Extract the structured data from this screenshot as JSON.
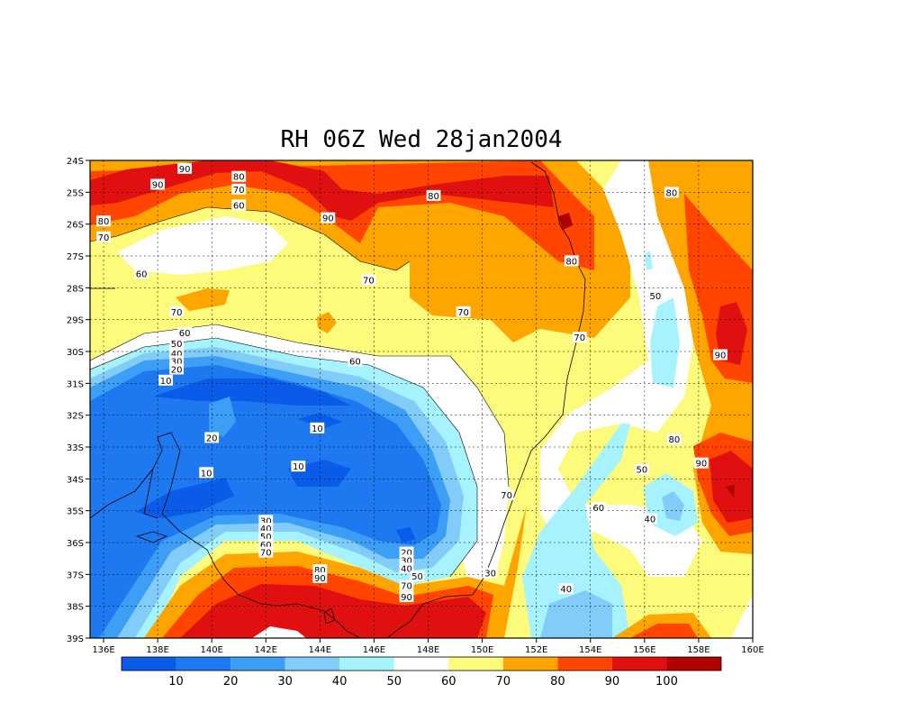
{
  "title": "RH 06Z Wed 28jan2004",
  "chart_data": {
    "type": "heatmap",
    "variable": "RH",
    "title": "RH 06Z Wed 28jan2004",
    "xlim": [
      135.5,
      160
    ],
    "ylim": [
      -39,
      -24
    ],
    "x_ticks": [
      {
        "value": 136,
        "label": "136E"
      },
      {
        "value": 138,
        "label": "138E"
      },
      {
        "value": 140,
        "label": "140E"
      },
      {
        "value": 142,
        "label": "142E"
      },
      {
        "value": 144,
        "label": "144E"
      },
      {
        "value": 146,
        "label": "146E"
      },
      {
        "value": 148,
        "label": "148E"
      },
      {
        "value": 150,
        "label": "150E"
      },
      {
        "value": 152,
        "label": "152E"
      },
      {
        "value": 154,
        "label": "154E"
      },
      {
        "value": 156,
        "label": "156E"
      },
      {
        "value": 158,
        "label": "158E"
      },
      {
        "value": 160,
        "label": "160E"
      }
    ],
    "y_ticks": [
      {
        "value": -24,
        "label": "24S"
      },
      {
        "value": -25,
        "label": "25S"
      },
      {
        "value": -26,
        "label": "26S"
      },
      {
        "value": -27,
        "label": "27S"
      },
      {
        "value": -28,
        "label": "28S"
      },
      {
        "value": -29,
        "label": "29S"
      },
      {
        "value": -30,
        "label": "30S"
      },
      {
        "value": -31,
        "label": "31S"
      },
      {
        "value": -32,
        "label": "32S"
      },
      {
        "value": -33,
        "label": "33S"
      },
      {
        "value": -34,
        "label": "34S"
      },
      {
        "value": -35,
        "label": "35S"
      },
      {
        "value": -36,
        "label": "36S"
      },
      {
        "value": -37,
        "label": "37S"
      },
      {
        "value": -38,
        "label": "38S"
      },
      {
        "value": -39,
        "label": "39S"
      }
    ],
    "grid": true,
    "colorbar": {
      "colors": [
        "#0a5ce8",
        "#1e78f0",
        "#3c9ef5",
        "#82ccfa",
        "#a6f3ff",
        "#ffffff",
        "#fdfb7c",
        "#ffa500",
        "#ff4500",
        "#e01010",
        "#b00000"
      ],
      "labels": [
        "10",
        "20",
        "30",
        "40",
        "50",
        "60",
        "70",
        "80",
        "90",
        "100"
      ]
    },
    "contour_labels": [
      {
        "text": "90",
        "lon": 139.0,
        "lat": -24.25
      },
      {
        "text": "90",
        "lon": 138.0,
        "lat": -24.75
      },
      {
        "text": "80",
        "lon": 141.0,
        "lat": -24.5
      },
      {
        "text": "70",
        "lon": 141.0,
        "lat": -24.9
      },
      {
        "text": "60",
        "lon": 141.0,
        "lat": -25.4
      },
      {
        "text": "80",
        "lon": 136.0,
        "lat": -25.9
      },
      {
        "text": "70",
        "lon": 136.0,
        "lat": -26.4
      },
      {
        "text": "90",
        "lon": 144.3,
        "lat": -25.8
      },
      {
        "text": "80",
        "lon": 148.2,
        "lat": -25.1
      },
      {
        "text": "80",
        "lon": 157.0,
        "lat": -25.0
      },
      {
        "text": "60",
        "lon": 137.4,
        "lat": -27.55
      },
      {
        "text": "70",
        "lon": 145.8,
        "lat": -27.75
      },
      {
        "text": "80",
        "lon": 153.3,
        "lat": -27.15
      },
      {
        "text": "50",
        "lon": 156.4,
        "lat": -28.25
      },
      {
        "text": "70",
        "lon": 138.7,
        "lat": -28.75
      },
      {
        "text": "70",
        "lon": 149.3,
        "lat": -28.75
      },
      {
        "text": "70",
        "lon": 153.6,
        "lat": -29.55
      },
      {
        "text": "90",
        "lon": 158.8,
        "lat": -30.1
      },
      {
        "text": "60",
        "lon": 139.0,
        "lat": -29.4
      },
      {
        "text": "50",
        "lon": 138.7,
        "lat": -29.75
      },
      {
        "text": "40",
        "lon": 138.7,
        "lat": -30.05
      },
      {
        "text": "30",
        "lon": 138.7,
        "lat": -30.3
      },
      {
        "text": "20",
        "lon": 138.7,
        "lat": -30.55
      },
      {
        "text": "10",
        "lon": 138.3,
        "lat": -30.9
      },
      {
        "text": "60",
        "lon": 145.3,
        "lat": -30.3
      },
      {
        "text": "20",
        "lon": 140.0,
        "lat": -32.7
      },
      {
        "text": "10",
        "lon": 143.9,
        "lat": -32.4
      },
      {
        "text": "10",
        "lon": 139.8,
        "lat": -33.8
      },
      {
        "text": "10",
        "lon": 143.2,
        "lat": -33.6
      },
      {
        "text": "80",
        "lon": 157.1,
        "lat": -32.75
      },
      {
        "text": "90",
        "lon": 158.1,
        "lat": -33.5
      },
      {
        "text": "50",
        "lon": 155.9,
        "lat": -33.7
      },
      {
        "text": "70",
        "lon": 150.9,
        "lat": -34.5
      },
      {
        "text": "60",
        "lon": 154.3,
        "lat": -34.9
      },
      {
        "text": "40",
        "lon": 156.2,
        "lat": -35.25
      },
      {
        "text": "30",
        "lon": 142.0,
        "lat": -35.3
      },
      {
        "text": "40",
        "lon": 142.0,
        "lat": -35.55
      },
      {
        "text": "50",
        "lon": 142.0,
        "lat": -35.8
      },
      {
        "text": "60",
        "lon": 142.0,
        "lat": -36.05
      },
      {
        "text": "70",
        "lon": 142.0,
        "lat": -36.3
      },
      {
        "text": "20",
        "lon": 147.2,
        "lat": -36.3
      },
      {
        "text": "30",
        "lon": 147.2,
        "lat": -36.55
      },
      {
        "text": "40",
        "lon": 147.2,
        "lat": -36.8
      },
      {
        "text": "50",
        "lon": 147.6,
        "lat": -37.05
      },
      {
        "text": "70",
        "lon": 147.2,
        "lat": -37.35
      },
      {
        "text": "90",
        "lon": 147.2,
        "lat": -37.7
      },
      {
        "text": "80",
        "lon": 144.0,
        "lat": -36.85
      },
      {
        "text": "90",
        "lon": 144.0,
        "lat": -37.1
      },
      {
        "text": "30",
        "lon": 150.3,
        "lat": -36.95
      },
      {
        "text": "40",
        "lon": 153.1,
        "lat": -37.45
      }
    ]
  }
}
